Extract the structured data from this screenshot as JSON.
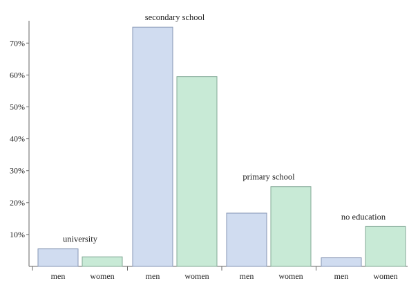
{
  "chart_data": {
    "type": "bar",
    "title": "",
    "xlabel": "",
    "ylabel": "",
    "ylim": [
      0,
      0.77
    ],
    "yticks": [
      0.1,
      0.2,
      0.3,
      0.4,
      0.5,
      0.6,
      0.7
    ],
    "ytick_labels": [
      "10%",
      "20%",
      "30%",
      "40%",
      "50%",
      "60%",
      "70%"
    ],
    "grid": false,
    "colors": {
      "men": "#d0dcf0",
      "women": "#c8ead6",
      "men_edge": "#8696b4",
      "women_edge": "#82a896"
    },
    "groups": [
      {
        "label": "university",
        "bars": [
          {
            "category": "men",
            "value": 0.055,
            "key": "men"
          },
          {
            "category": "women",
            "value": 0.03,
            "key": "women"
          }
        ]
      },
      {
        "label": "secondary school",
        "bars": [
          {
            "category": "men",
            "value": 0.75,
            "key": "men"
          },
          {
            "category": "women",
            "value": 0.595,
            "key": "women"
          }
        ]
      },
      {
        "label": "primary school",
        "bars": [
          {
            "category": "men",
            "value": 0.167,
            "key": "men"
          },
          {
            "category": "women",
            "value": 0.25,
            "key": "women"
          }
        ]
      },
      {
        "label": "no education",
        "bars": [
          {
            "category": "men",
            "value": 0.027,
            "key": "men"
          },
          {
            "category": "women",
            "value": 0.125,
            "key": "women"
          }
        ]
      }
    ]
  }
}
